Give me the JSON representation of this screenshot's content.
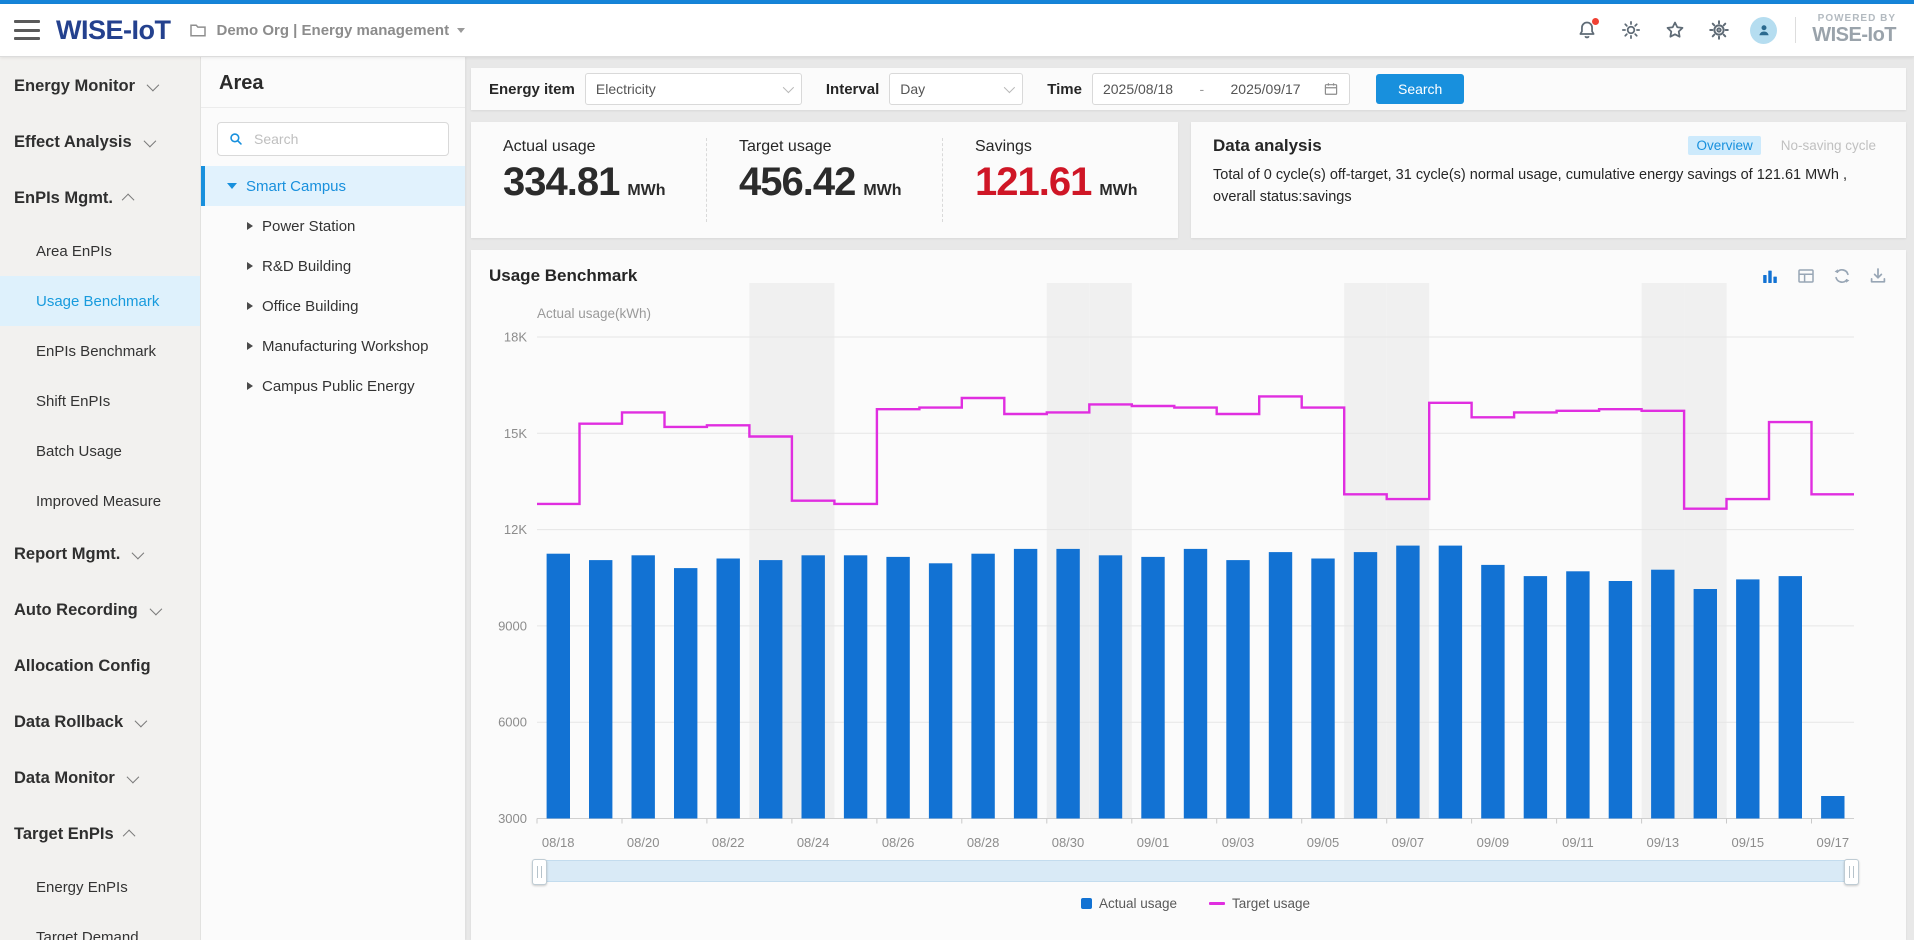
{
  "header": {
    "logo": "WISE-IoT",
    "org_breadcrumb": "Demo Org | Energy management",
    "icons": [
      {
        "name": "notification-bell",
        "badge": true
      },
      {
        "name": "display-sun",
        "badge": false
      },
      {
        "name": "favorite-star",
        "badge": false
      },
      {
        "name": "settings-gear",
        "badge": false
      }
    ],
    "powered_by_line1": "POWERED BY",
    "powered_by_line2": "WISE-IoT"
  },
  "sidebar": {
    "items": [
      {
        "label": "Energy Monitor",
        "type": "group",
        "chevron": "down",
        "active": false
      },
      {
        "label": "Effect Analysis",
        "type": "group",
        "chevron": "down",
        "active": false
      },
      {
        "label": "EnPIs Mgmt.",
        "type": "group",
        "chevron": "up",
        "active": false
      },
      {
        "label": "Area EnPIs",
        "type": "sub",
        "chevron": null,
        "active": false
      },
      {
        "label": "Usage Benchmark",
        "type": "sub",
        "chevron": null,
        "active": true
      },
      {
        "label": "EnPIs Benchmark",
        "type": "sub",
        "chevron": null,
        "active": false
      },
      {
        "label": "Shift EnPIs",
        "type": "sub",
        "chevron": null,
        "active": false
      },
      {
        "label": "Batch Usage",
        "type": "sub",
        "chevron": null,
        "active": false
      },
      {
        "label": "Improved Measure",
        "type": "sub",
        "chevron": null,
        "active": false
      },
      {
        "label": "Report Mgmt.",
        "type": "group",
        "chevron": "down",
        "active": false
      },
      {
        "label": "Auto Recording",
        "type": "group",
        "chevron": "down",
        "active": false
      },
      {
        "label": "Allocation Config",
        "type": "group",
        "chevron": null,
        "active": false
      },
      {
        "label": "Data Rollback",
        "type": "group",
        "chevron": "down",
        "active": false
      },
      {
        "label": "Data Monitor",
        "type": "group",
        "chevron": "down",
        "active": false
      },
      {
        "label": "Target EnPIs",
        "type": "group",
        "chevron": "up",
        "active": false
      },
      {
        "label": "Energy EnPIs",
        "type": "sub",
        "chevron": null,
        "active": false
      },
      {
        "label": "Target Demand",
        "type": "sub",
        "chevron": null,
        "active": false
      }
    ]
  },
  "area_panel": {
    "title": "Area",
    "search_placeholder": "Search",
    "tree": [
      {
        "label": "Smart Campus",
        "level": 0,
        "expanded": true,
        "selected": true
      },
      {
        "label": "Power Station",
        "level": 1,
        "expanded": false,
        "selected": false
      },
      {
        "label": "R&D Building",
        "level": 1,
        "expanded": false,
        "selected": false
      },
      {
        "label": "Office Building",
        "level": 1,
        "expanded": false,
        "selected": false
      },
      {
        "label": "Manufacturing Workshop",
        "level": 1,
        "expanded": false,
        "selected": false
      },
      {
        "label": "Campus Public Energy",
        "level": 1,
        "expanded": false,
        "selected": false
      }
    ]
  },
  "filters": {
    "energy_item_label": "Energy item",
    "energy_item_value": "Electricity",
    "interval_label": "Interval",
    "interval_value": "Day",
    "time_label": "Time",
    "time_start": "2025/08/18",
    "time_separator": "-",
    "time_end": "2025/09/17",
    "search_button": "Search"
  },
  "stats": {
    "cards": [
      {
        "label": "Actual usage",
        "value": "334.81",
        "unit": "MWh",
        "value_color": "#2b2b2b"
      },
      {
        "label": "Target usage",
        "value": "456.42",
        "unit": "MWh",
        "value_color": "#2b2b2b"
      },
      {
        "label": "Savings",
        "value": "121.61",
        "unit": "MWh",
        "value_color": "#cf1626"
      }
    ]
  },
  "data_analysis": {
    "title": "Data analysis",
    "tabs": [
      {
        "label": "Overview",
        "active": true
      },
      {
        "label": "No-saving cycle",
        "active": false
      }
    ],
    "body": "Total of 0 cycle(s) off-target, 31 cycle(s) normal usage, cumulative energy savings of 121.61 MWh , overall status:savings"
  },
  "benchmark_panel": {
    "title": "Usage Benchmark",
    "toolbar_icons": [
      {
        "name": "bar-chart",
        "active": true
      },
      {
        "name": "table",
        "active": false
      },
      {
        "name": "refresh",
        "active": false
      },
      {
        "name": "download",
        "active": false
      }
    ]
  },
  "chart_data": {
    "type": "bar",
    "title": "Usage Benchmark",
    "y_axis_name": "Actual usage(kWh)",
    "ylim": [
      3000,
      18000
    ],
    "y_tick_values": [
      18000,
      15000,
      12000,
      9000,
      6000,
      3000
    ],
    "y_tick_labels": [
      "18K",
      "15K",
      "12K",
      "9000",
      "6000",
      "3000"
    ],
    "grid": true,
    "legend_position": "bottom",
    "categories": [
      "08/18",
      "08/19",
      "08/20",
      "08/21",
      "08/22",
      "08/23",
      "08/24",
      "08/25",
      "08/26",
      "08/27",
      "08/28",
      "08/29",
      "08/30",
      "08/31",
      "09/01",
      "09/02",
      "09/03",
      "09/04",
      "09/05",
      "09/06",
      "09/07",
      "09/08",
      "09/09",
      "09/10",
      "09/11",
      "09/12",
      "09/13",
      "09/14",
      "09/15",
      "09/16",
      "09/17"
    ],
    "x_label_every": 2,
    "weekend_indices": [
      5,
      6,
      12,
      13,
      19,
      20,
      26,
      27
    ],
    "series": [
      {
        "name": "Actual usage",
        "type": "bar",
        "color": "#1272d3",
        "values": [
          11250,
          11050,
          11200,
          10800,
          11100,
          11050,
          11200,
          11200,
          11150,
          10950,
          11250,
          11400,
          11400,
          11200,
          11150,
          11400,
          11050,
          11300,
          11100,
          11300,
          11500,
          11500,
          10900,
          10550,
          10700,
          10400,
          10750,
          10150,
          10450,
          10550,
          3700
        ]
      },
      {
        "name": "Target usage",
        "type": "step-line",
        "color": "#e02ee0",
        "values": [
          12800,
          15300,
          15650,
          15200,
          15250,
          14900,
          12900,
          12800,
          15750,
          15800,
          16100,
          15600,
          15650,
          15900,
          15850,
          15800,
          15600,
          16150,
          15800,
          13100,
          12950,
          15950,
          15500,
          15650,
          15700,
          15750,
          15700,
          12650,
          12950,
          15350,
          13100
        ]
      }
    ]
  },
  "colors": {
    "accent_blue": "#1890dd",
    "bar_blue": "#1272d3",
    "target_magenta": "#e02ee0",
    "savings_red": "#cf1626",
    "logo_navy": "#24418e",
    "top_strip": "#1584d8"
  }
}
